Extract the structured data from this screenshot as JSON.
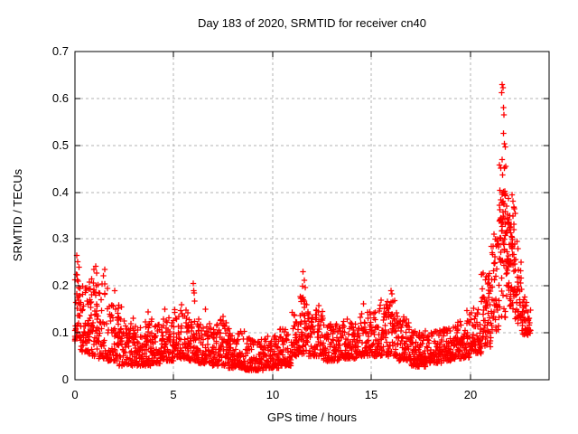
{
  "colors": {
    "marker": "#ff0000",
    "grid": "#b3b3b3",
    "axis": "#000000",
    "background": "#ffffff",
    "text": "#000000"
  },
  "chart_data": {
    "type": "scatter",
    "title": "Day 183 of 2020, SRMTID for receiver cn40",
    "xlabel": "GPS time / hours",
    "ylabel": "SRMTID / TECUs",
    "xlim": [
      0,
      24
    ],
    "ylim": [
      0,
      0.7
    ],
    "grid": true,
    "legend": "none",
    "marker": "plus",
    "marker_color": "#ff0000",
    "xticks": [
      {
        "v": 0,
        "label": "0"
      },
      {
        "v": 5,
        "label": "5"
      },
      {
        "v": 10,
        "label": "10"
      },
      {
        "v": 15,
        "label": "15"
      },
      {
        "v": 20,
        "label": "20"
      }
    ],
    "yticks": [
      {
        "v": 0.0,
        "label": "0"
      },
      {
        "v": 0.1,
        "label": "0.1"
      },
      {
        "v": 0.2,
        "label": "0.2"
      },
      {
        "v": 0.3,
        "label": "0.3"
      },
      {
        "v": 0.4,
        "label": "0.4"
      },
      {
        "v": 0.5,
        "label": "0.5"
      },
      {
        "v": 0.6,
        "label": "0.6"
      },
      {
        "v": 0.7,
        "label": "0.7"
      }
    ],
    "seed": 20200183,
    "epoch_step_hours": 0.05,
    "density_segments_format": "[t_start, t_end, y_min, y_max, points_per_epoch, skew_exponent]",
    "density_segments": [
      [
        0.0,
        0.3,
        0.08,
        0.23,
        6,
        1.2
      ],
      [
        0.3,
        0.7,
        0.06,
        0.2,
        6,
        1.5
      ],
      [
        0.7,
        1.2,
        0.05,
        0.22,
        6,
        1.5
      ],
      [
        1.2,
        1.7,
        0.045,
        0.21,
        5,
        1.7
      ],
      [
        1.7,
        2.2,
        0.04,
        0.165,
        5,
        1.6
      ],
      [
        2.2,
        3.0,
        0.03,
        0.135,
        5,
        1.6
      ],
      [
        3.0,
        3.6,
        0.03,
        0.115,
        5,
        1.8
      ],
      [
        3.6,
        3.9,
        0.03,
        0.14,
        5,
        1.8
      ],
      [
        3.9,
        4.4,
        0.035,
        0.12,
        5,
        1.8
      ],
      [
        4.4,
        5.0,
        0.04,
        0.145,
        5,
        1.8
      ],
      [
        5.0,
        5.7,
        0.045,
        0.15,
        5,
        1.8
      ],
      [
        5.7,
        6.25,
        0.04,
        0.13,
        5,
        1.8
      ],
      [
        6.25,
        7.0,
        0.035,
        0.12,
        5,
        1.8
      ],
      [
        7.0,
        7.8,
        0.03,
        0.13,
        5,
        1.8
      ],
      [
        7.8,
        8.6,
        0.025,
        0.105,
        5,
        1.8
      ],
      [
        8.6,
        9.6,
        0.02,
        0.09,
        5,
        1.8
      ],
      [
        9.6,
        10.4,
        0.025,
        0.095,
        5,
        1.8
      ],
      [
        10.4,
        11.0,
        0.03,
        0.11,
        5,
        1.8
      ],
      [
        11.0,
        11.4,
        0.05,
        0.15,
        5,
        1.6
      ],
      [
        11.4,
        11.8,
        0.055,
        0.19,
        6,
        1.4
      ],
      [
        11.8,
        12.2,
        0.05,
        0.16,
        5,
        1.6
      ],
      [
        12.2,
        12.6,
        0.05,
        0.15,
        5,
        1.6
      ],
      [
        12.6,
        13.4,
        0.04,
        0.12,
        5,
        1.8
      ],
      [
        13.4,
        14.3,
        0.045,
        0.13,
        5,
        1.8
      ],
      [
        14.3,
        15.2,
        0.05,
        0.15,
        5,
        1.7
      ],
      [
        15.2,
        15.8,
        0.05,
        0.165,
        5,
        1.7
      ],
      [
        15.8,
        16.4,
        0.05,
        0.175,
        5,
        1.7
      ],
      [
        16.4,
        17.0,
        0.04,
        0.135,
        5,
        1.8
      ],
      [
        17.0,
        17.8,
        0.028,
        0.105,
        6,
        1.8
      ],
      [
        17.8,
        18.6,
        0.035,
        0.105,
        5,
        1.8
      ],
      [
        18.6,
        19.4,
        0.04,
        0.115,
        5,
        1.8
      ],
      [
        19.4,
        20.0,
        0.045,
        0.13,
        5,
        1.7
      ],
      [
        20.0,
        20.6,
        0.055,
        0.155,
        5,
        1.6
      ],
      [
        20.6,
        21.1,
        0.07,
        0.23,
        6,
        1.4
      ],
      [
        21.1,
        21.5,
        0.1,
        0.32,
        6,
        1.3
      ],
      [
        21.5,
        21.9,
        0.13,
        0.46,
        6,
        1.1
      ],
      [
        21.5,
        21.9,
        0.24,
        0.4,
        3,
        1.0
      ],
      [
        21.9,
        22.3,
        0.15,
        0.4,
        6,
        1.2
      ],
      [
        21.9,
        22.3,
        0.24,
        0.34,
        3,
        1.0
      ],
      [
        22.3,
        22.65,
        0.12,
        0.27,
        5,
        1.2
      ],
      [
        22.65,
        23.0,
        0.095,
        0.185,
        5,
        1.3
      ],
      [
        23.0,
        23.1,
        0.09,
        0.15,
        4,
        1.0
      ]
    ],
    "feature_points": [
      [
        0.08,
        0.265
      ],
      [
        0.14,
        0.252
      ],
      [
        0.2,
        0.24
      ],
      [
        0.95,
        0.235
      ],
      [
        1.05,
        0.242
      ],
      [
        1.1,
        0.228
      ],
      [
        1.45,
        0.222
      ],
      [
        1.5,
        0.235
      ],
      [
        2.0,
        0.19
      ],
      [
        2.35,
        0.155
      ],
      [
        3.7,
        0.145
      ],
      [
        4.55,
        0.15
      ],
      [
        5.4,
        0.16
      ],
      [
        5.98,
        0.205
      ],
      [
        6.0,
        0.19
      ],
      [
        6.03,
        0.185
      ],
      [
        6.06,
        0.168
      ],
      [
        6.6,
        0.15
      ],
      [
        7.5,
        0.135
      ],
      [
        11.52,
        0.2
      ],
      [
        11.55,
        0.23
      ],
      [
        11.6,
        0.212
      ],
      [
        11.66,
        0.197
      ],
      [
        12.35,
        0.158
      ],
      [
        14.6,
        0.162
      ],
      [
        15.5,
        0.17
      ],
      [
        16.0,
        0.19
      ],
      [
        16.05,
        0.183
      ],
      [
        19.85,
        0.148
      ],
      [
        21.59,
        0.612
      ],
      [
        21.62,
        0.63
      ],
      [
        21.66,
        0.623
      ],
      [
        21.7,
        0.58
      ],
      [
        21.72,
        0.565
      ],
      [
        21.68,
        0.525
      ],
      [
        21.74,
        0.503
      ],
      [
        21.78,
        0.497
      ],
      [
        21.63,
        0.47
      ],
      [
        21.8,
        0.455
      ],
      [
        22.38,
        0.295
      ],
      [
        22.42,
        0.28
      ]
    ]
  }
}
